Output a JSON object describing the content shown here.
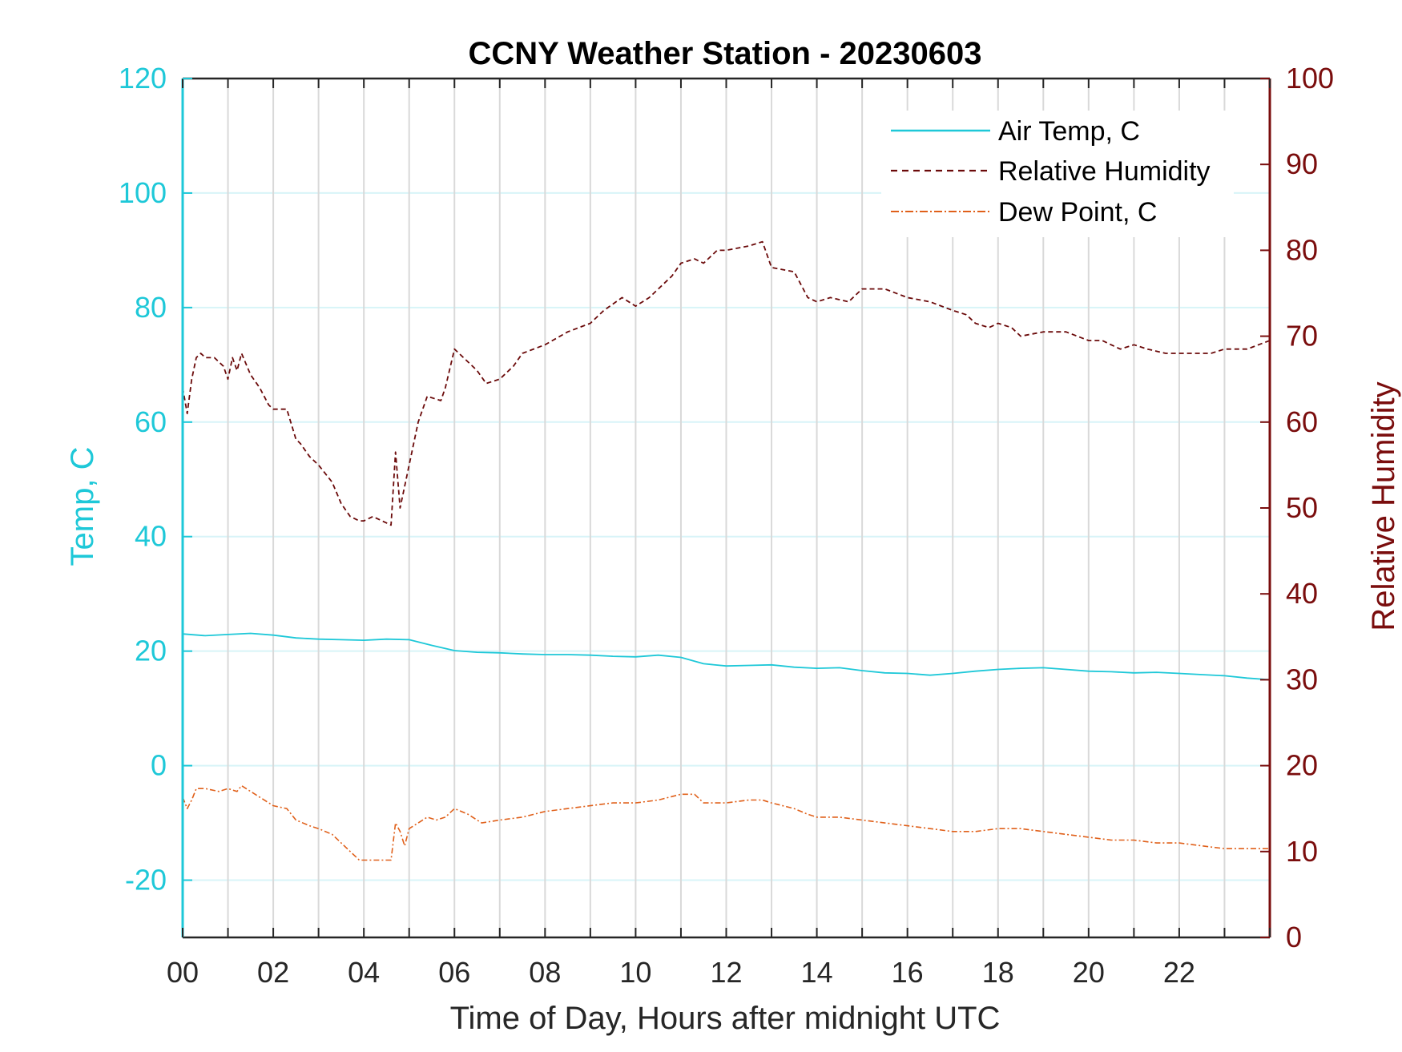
{
  "chart_data": {
    "type": "line",
    "title": "CCNY Weather Station - 20230603",
    "xlabel": "Time of Day, Hours after midnight UTC",
    "ylabel_left": "Temp, C",
    "ylabel_right": "Relative Humidity",
    "xlim": [
      0,
      24
    ],
    "ylim_left": [
      -30,
      120
    ],
    "ylim_right": [
      0,
      100
    ],
    "x_ticks": [
      0,
      2,
      4,
      6,
      8,
      10,
      12,
      14,
      16,
      18,
      20,
      22
    ],
    "x_tick_labels": [
      "00",
      "02",
      "04",
      "06",
      "08",
      "10",
      "12",
      "14",
      "16",
      "18",
      "20",
      "22"
    ],
    "y_left_ticks": [
      -20,
      0,
      20,
      40,
      60,
      80,
      100,
      120
    ],
    "y_left_tick_labels": [
      "-20",
      "0",
      "20",
      "40",
      "60",
      "80",
      "100",
      "120"
    ],
    "y_right_ticks": [
      0,
      10,
      20,
      30,
      40,
      50,
      60,
      70,
      80,
      90,
      100
    ],
    "y_right_tick_labels": [
      "0",
      "10",
      "20",
      "30",
      "40",
      "50",
      "60",
      "70",
      "80",
      "90",
      "100"
    ],
    "grid": true,
    "legend_position": "top-right",
    "colors": {
      "air_temp": "#1ec8d8",
      "relative_humidity": "#6b0a0a",
      "dew_point": "#e0601a",
      "left_axis": "#1ec8d8",
      "right_axis": "#7a0d0d",
      "grid_vertical": "#d9d9d9",
      "grid_horizontal": "#d8f4f8"
    },
    "series": [
      {
        "name": "Air Temp, C",
        "axis": "left",
        "style": "solid",
        "x": [
          0,
          0.5,
          1,
          1.5,
          2,
          2.5,
          3,
          3.5,
          4,
          4.5,
          5,
          5.5,
          6,
          6.5,
          7,
          7.5,
          8,
          8.5,
          9,
          9.5,
          10,
          10.5,
          11,
          11.5,
          12,
          12.5,
          13,
          13.5,
          14,
          14.5,
          15,
          15.5,
          16,
          16.5,
          17,
          17.5,
          18,
          18.5,
          19,
          19.5,
          20,
          20.5,
          21,
          21.5,
          22,
          22.5,
          23,
          23.5,
          24
        ],
        "values": [
          23.0,
          22.7,
          22.9,
          23.1,
          22.8,
          22.3,
          22.1,
          22.0,
          21.9,
          22.1,
          22.0,
          21.0,
          20.1,
          19.8,
          19.7,
          19.5,
          19.4,
          19.4,
          19.3,
          19.1,
          19.0,
          19.3,
          18.9,
          17.8,
          17.4,
          17.5,
          17.6,
          17.2,
          17.0,
          17.1,
          16.6,
          16.2,
          16.1,
          15.8,
          16.1,
          16.5,
          16.8,
          17.0,
          17.1,
          16.8,
          16.5,
          16.4,
          16.2,
          16.3,
          16.1,
          15.9,
          15.7,
          15.3,
          15.0
        ]
      },
      {
        "name": "Relative Humidity",
        "axis": "right",
        "style": "dashed",
        "x": [
          0,
          0.1,
          0.2,
          0.3,
          0.4,
          0.5,
          0.7,
          0.9,
          1.0,
          1.1,
          1.2,
          1.3,
          1.5,
          1.7,
          1.9,
          2.0,
          2.3,
          2.5,
          2.6,
          2.8,
          3.0,
          3.3,
          3.5,
          3.7,
          3.9,
          4.0,
          4.2,
          4.4,
          4.6,
          4.7,
          4.8,
          5.0,
          5.2,
          5.4,
          5.7,
          5.8,
          6.0,
          6.2,
          6.5,
          6.7,
          7.0,
          7.3,
          7.5,
          8.0,
          8.5,
          9.0,
          9.3,
          9.7,
          10.0,
          10.3,
          10.6,
          10.8,
          11.0,
          11.3,
          11.5,
          11.8,
          12.0,
          12.5,
          12.8,
          13.0,
          13.5,
          13.8,
          14.0,
          14.3,
          14.7,
          15.0,
          15.5,
          16.0,
          16.5,
          17.0,
          17.3,
          17.5,
          17.8,
          18.0,
          18.3,
          18.5,
          19.0,
          19.5,
          20.0,
          20.3,
          20.7,
          21.0,
          21.3,
          21.7,
          22.0,
          22.3,
          22.7,
          23.0,
          23.5,
          24.0
        ],
        "values": [
          64.0,
          61.0,
          65.0,
          67.5,
          68.0,
          67.5,
          67.5,
          66.5,
          65.0,
          67.5,
          66.0,
          68.0,
          65.5,
          64.0,
          62.0,
          61.5,
          61.5,
          58.0,
          57.5,
          56.0,
          55.0,
          53.0,
          50.5,
          49.0,
          48.5,
          48.5,
          49.0,
          48.5,
          48.0,
          56.5,
          50.0,
          55.0,
          60.0,
          63.0,
          62.5,
          64.0,
          68.5,
          67.5,
          66.0,
          64.5,
          65.0,
          66.5,
          68.0,
          69.0,
          70.5,
          71.5,
          73.0,
          74.5,
          73.5,
          74.5,
          76.0,
          77.0,
          78.5,
          79.0,
          78.5,
          80.0,
          80.0,
          80.5,
          81.0,
          78.0,
          77.5,
          74.5,
          74.0,
          74.5,
          74.0,
          75.5,
          75.5,
          74.5,
          74.0,
          73.0,
          72.5,
          71.5,
          71.0,
          71.5,
          71.0,
          70.0,
          70.5,
          70.5,
          69.5,
          69.5,
          68.5,
          69.0,
          68.5,
          68.0,
          68.0,
          68.0,
          68.0,
          68.5,
          68.5,
          69.5
        ]
      },
      {
        "name": "Dew Point, C",
        "axis": "left",
        "style": "dashdot",
        "x": [
          0,
          0.1,
          0.2,
          0.3,
          0.5,
          0.8,
          1.0,
          1.2,
          1.3,
          1.5,
          1.7,
          2.0,
          2.3,
          2.5,
          2.8,
          3.0,
          3.3,
          3.5,
          3.7,
          3.9,
          4.0,
          4.3,
          4.6,
          4.7,
          4.8,
          4.9,
          5.0,
          5.2,
          5.4,
          5.6,
          5.8,
          6.0,
          6.3,
          6.6,
          7.0,
          7.5,
          8.0,
          8.5,
          9.0,
          9.5,
          10.0,
          10.5,
          11.0,
          11.3,
          11.5,
          11.8,
          12.0,
          12.5,
          12.8,
          13.0,
          13.5,
          13.8,
          14.0,
          14.5,
          15.0,
          15.5,
          16.0,
          16.5,
          17.0,
          17.5,
          18.0,
          18.5,
          19.0,
          19.5,
          20.0,
          20.5,
          21.0,
          21.5,
          22.0,
          22.5,
          23.0,
          23.5,
          24.0
        ],
        "values": [
          -5.5,
          -7.5,
          -6.0,
          -4.0,
          -4.0,
          -4.5,
          -4.0,
          -4.5,
          -3.5,
          -4.5,
          -5.5,
          -7.0,
          -7.5,
          -9.5,
          -10.5,
          -11.0,
          -12.0,
          -13.5,
          -15.0,
          -16.5,
          -16.5,
          -16.5,
          -16.5,
          -10.0,
          -11.5,
          -14.0,
          -11.0,
          -10.0,
          -9.0,
          -9.5,
          -9.0,
          -7.5,
          -8.5,
          -10.0,
          -9.5,
          -9.0,
          -8.0,
          -7.5,
          -7.0,
          -6.5,
          -6.5,
          -6.0,
          -5.0,
          -5.0,
          -6.5,
          -6.5,
          -6.5,
          -6.0,
          -6.0,
          -6.5,
          -7.5,
          -8.5,
          -9.0,
          -9.0,
          -9.5,
          -10.0,
          -10.5,
          -11.0,
          -11.5,
          -11.5,
          -11.0,
          -11.0,
          -11.5,
          -12.0,
          -12.5,
          -13.0,
          -13.0,
          -13.5,
          -13.5,
          -14.0,
          -14.5,
          -14.5,
          -14.5
        ]
      }
    ]
  }
}
